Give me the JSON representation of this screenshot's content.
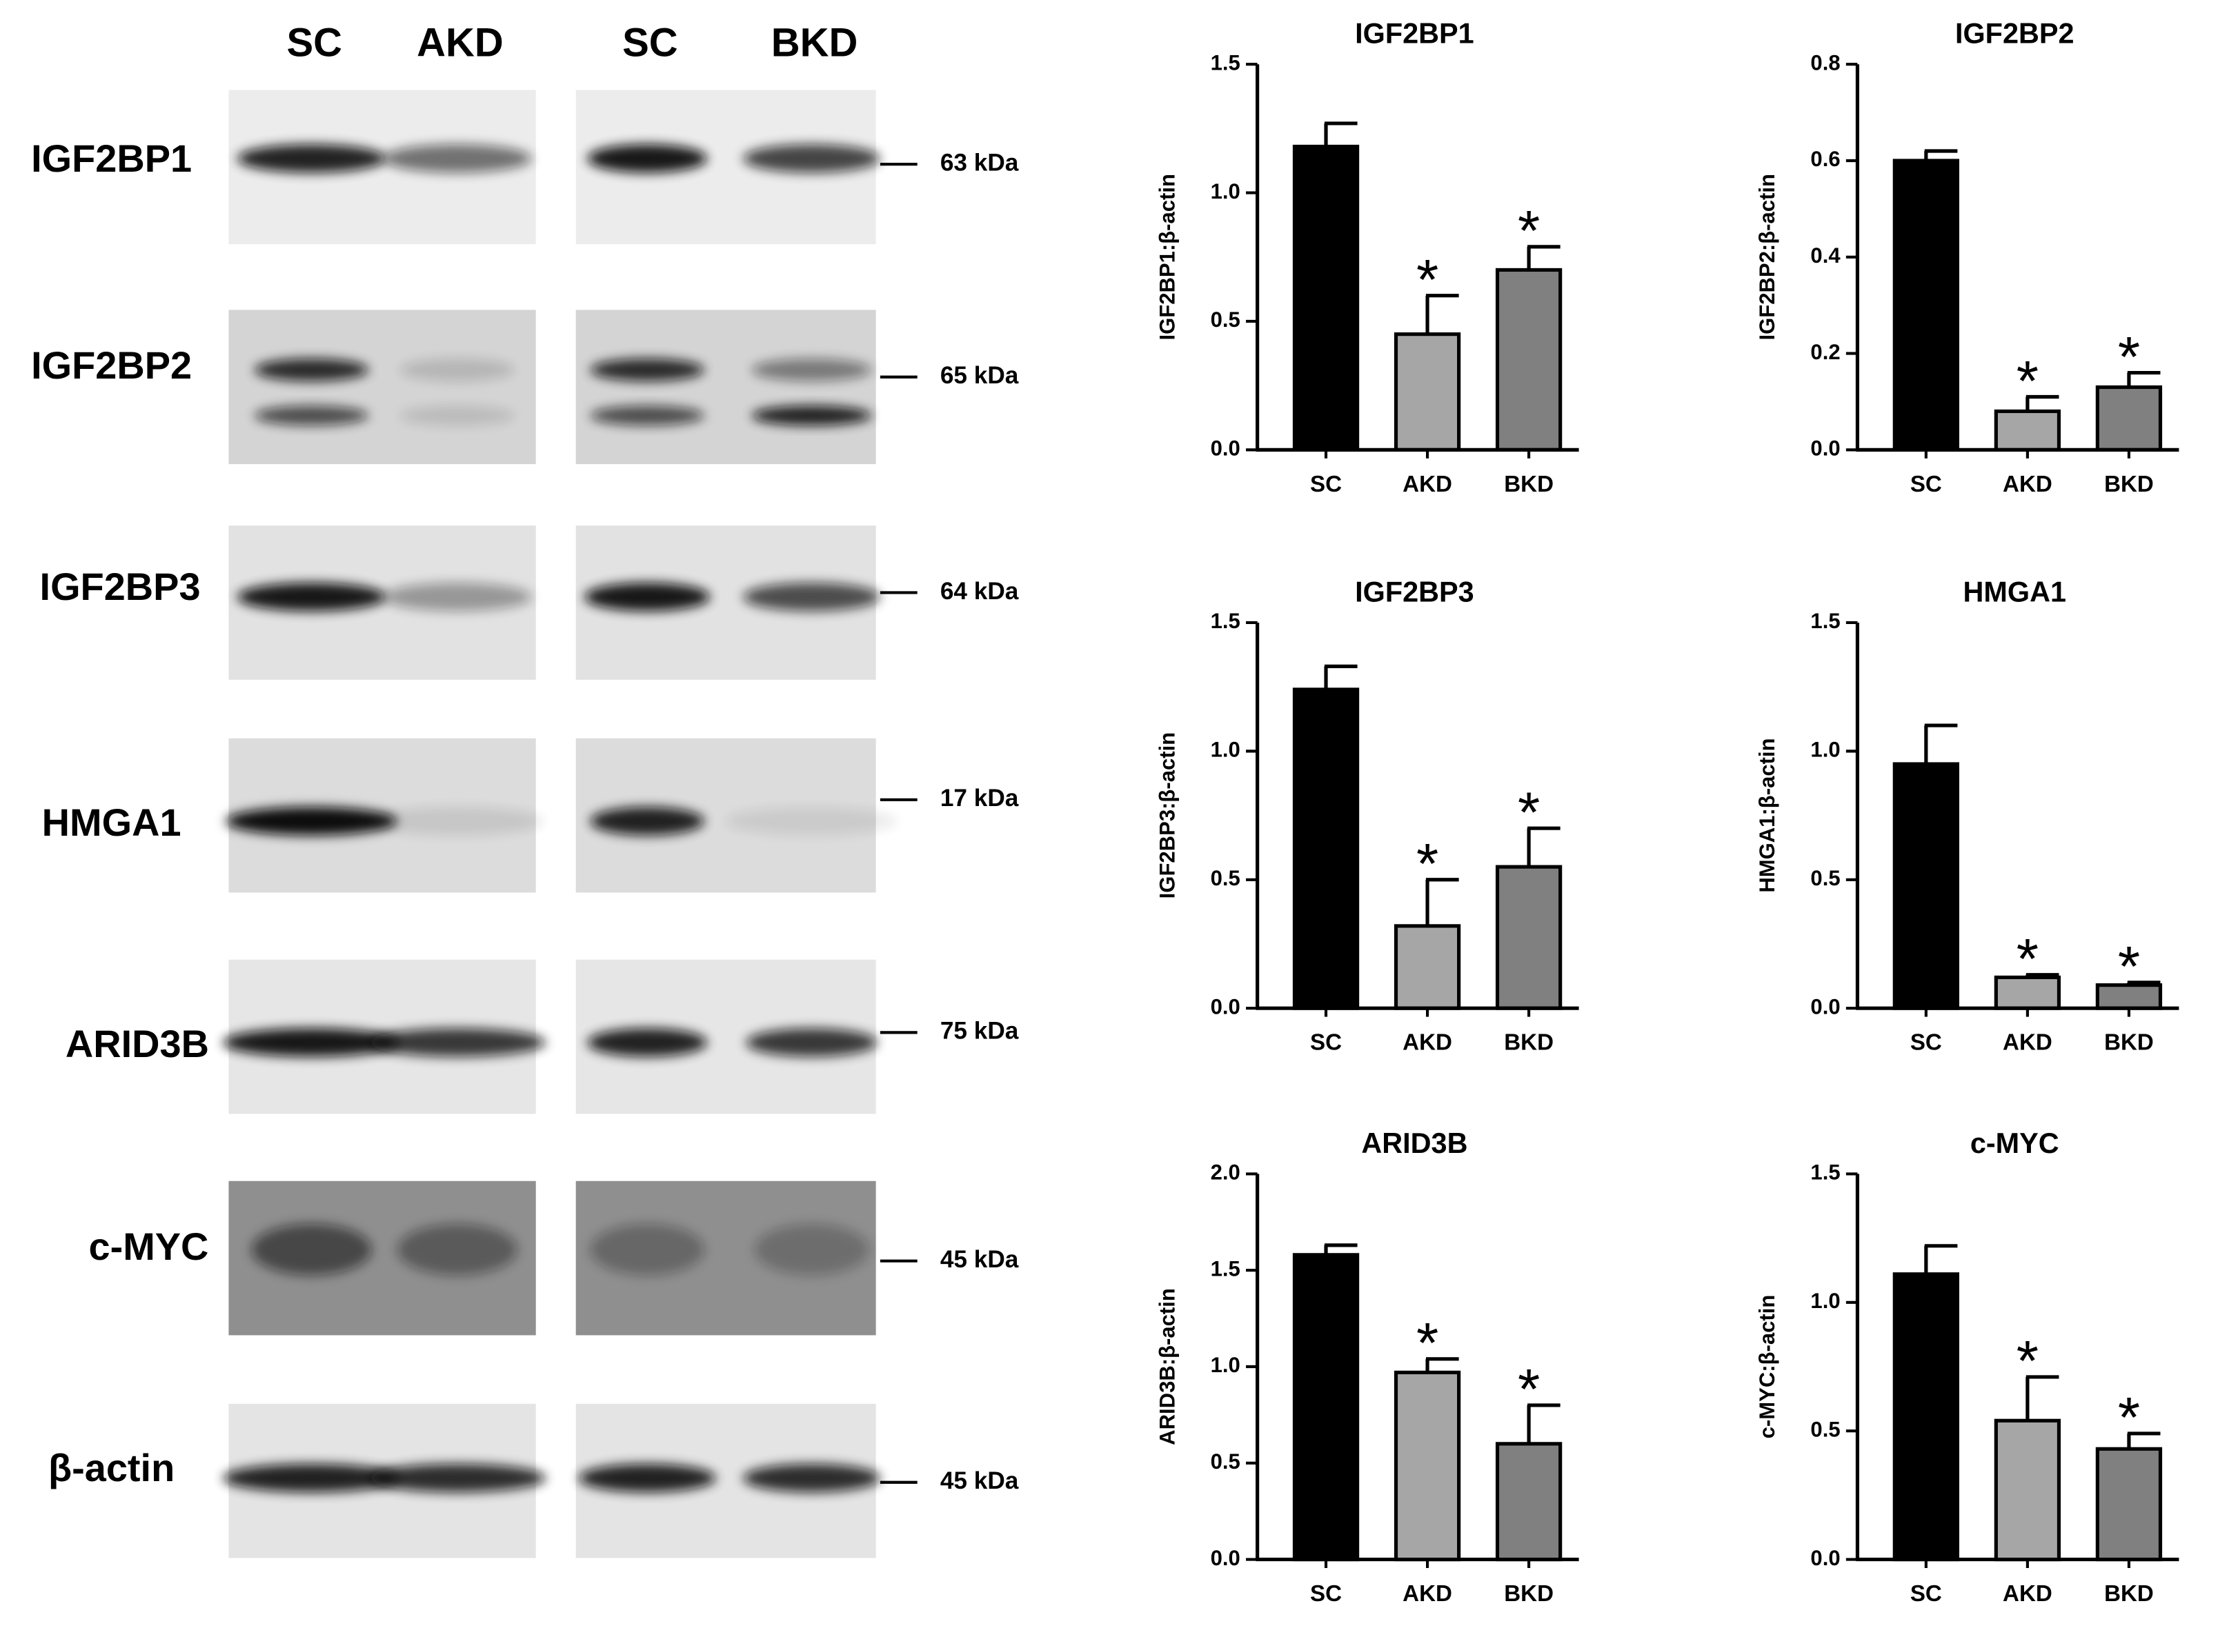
{
  "blot": {
    "lanes": [
      "SC",
      "AKD",
      "SC",
      "BKD"
    ],
    "rows": [
      {
        "protein": "IGF2BP1",
        "marker": "63 kDa"
      },
      {
        "protein": "IGF2BP2",
        "marker": "65 kDa"
      },
      {
        "protein": "IGF2BP3",
        "marker": "64 kDa"
      },
      {
        "protein": "HMGA1",
        "marker": "17 kDa"
      },
      {
        "protein": "ARID3B",
        "marker": "75 kDa"
      },
      {
        "protein": "c-MYC",
        "marker": "45 kDa"
      },
      {
        "protein": "β-actin",
        "marker": "45 kDa"
      }
    ]
  },
  "chart_data": [
    {
      "type": "bar",
      "title": "IGF2BP1",
      "ylabel": "IGF2BP1:β-actin",
      "categories": [
        "SC",
        "AKD",
        "BKD"
      ],
      "values": [
        1.18,
        0.45,
        0.7
      ],
      "errors": [
        0.09,
        0.15,
        0.09
      ],
      "significance": [
        null,
        "*",
        "*"
      ],
      "colors": [
        "#000000",
        "#a6a6a6",
        "#808080"
      ],
      "ylim": [
        0,
        1.5
      ],
      "yticks": [
        {
          "value": 0,
          "label": "0.0"
        },
        0.5,
        {
          "value": 1,
          "label": "1.0"
        },
        1.5
      ]
    },
    {
      "type": "bar",
      "title": "IGF2BP2",
      "ylabel": "IGF2BP2:β-actin",
      "categories": [
        "SC",
        "AKD",
        "BKD"
      ],
      "values": [
        0.6,
        0.08,
        0.13
      ],
      "errors": [
        0.02,
        0.03,
        0.03
      ],
      "significance": [
        null,
        "*",
        "*"
      ],
      "colors": [
        "#000000",
        "#a6a6a6",
        "#808080"
      ],
      "ylim": [
        0,
        0.8
      ],
      "yticks": [
        {
          "value": 0,
          "label": "0.0"
        },
        0.2,
        0.4,
        0.6,
        0.8
      ]
    },
    {
      "type": "bar",
      "title": "IGF2BP3",
      "ylabel": "IGF2BP3:β-actin",
      "categories": [
        "SC",
        "AKD",
        "BKD"
      ],
      "values": [
        1.24,
        0.32,
        0.55
      ],
      "errors": [
        0.09,
        0.18,
        0.15
      ],
      "significance": [
        null,
        "*",
        "*"
      ],
      "colors": [
        "#000000",
        "#a6a6a6",
        "#808080"
      ],
      "ylim": [
        0,
        1.5
      ],
      "yticks": [
        {
          "value": 0,
          "label": "0.0"
        },
        0.5,
        {
          "value": 1,
          "label": "1.0"
        },
        1.5
      ]
    },
    {
      "type": "bar",
      "title": "HMGA1",
      "ylabel": "HMGA1:β-actin",
      "categories": [
        "SC",
        "AKD",
        "BKD"
      ],
      "values": [
        0.95,
        0.12,
        0.09
      ],
      "errors": [
        0.15,
        0.01,
        0.01
      ],
      "significance": [
        null,
        "*",
        "*"
      ],
      "colors": [
        "#000000",
        "#a6a6a6",
        "#808080"
      ],
      "ylim": [
        0,
        1.5
      ],
      "yticks": [
        {
          "value": 0,
          "label": "0.0"
        },
        0.5,
        {
          "value": 1,
          "label": "1.0"
        },
        1.5
      ]
    },
    {
      "type": "bar",
      "title": "ARID3B",
      "ylabel": "ARID3B:β-actin",
      "categories": [
        "SC",
        "AKD",
        "BKD"
      ],
      "values": [
        1.58,
        0.97,
        0.6
      ],
      "errors": [
        0.05,
        0.07,
        0.2
      ],
      "significance": [
        null,
        "*",
        "*"
      ],
      "colors": [
        "#000000",
        "#a6a6a6",
        "#808080"
      ],
      "ylim": [
        0,
        2
      ],
      "yticks": [
        {
          "value": 0,
          "label": "0.0"
        },
        0.5,
        {
          "value": 1,
          "label": "1.0"
        },
        1.5,
        {
          "value": 2,
          "label": "2.0"
        }
      ]
    },
    {
      "type": "bar",
      "title": "c-MYC",
      "ylabel": "c-MYC:β-actin",
      "categories": [
        "SC",
        "AKD",
        "BKD"
      ],
      "values": [
        1.11,
        0.54,
        0.43
      ],
      "errors": [
        0.11,
        0.17,
        0.06
      ],
      "significance": [
        null,
        "*",
        "*"
      ],
      "colors": [
        "#000000",
        "#a6a6a6",
        "#808080"
      ],
      "ylim": [
        0,
        1.5
      ],
      "yticks": [
        {
          "value": 0,
          "label": "0.0"
        },
        0.5,
        {
          "value": 1,
          "label": "1.0"
        },
        1.5
      ]
    }
  ]
}
